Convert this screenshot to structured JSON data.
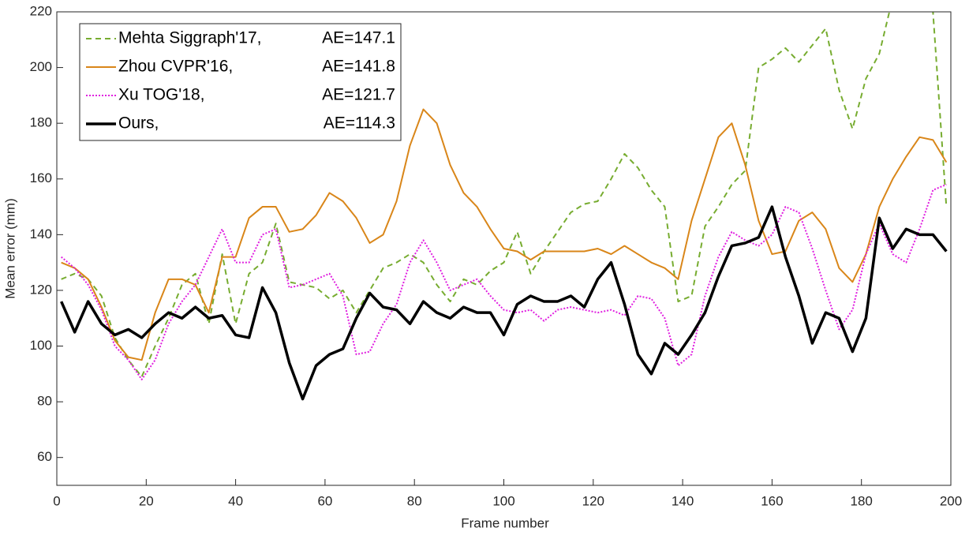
{
  "chart_data": {
    "type": "line",
    "x_label": "Frame number",
    "y_label": "Mean error (mm)",
    "xlim": [
      0,
      200
    ],
    "xticks": [
      0,
      20,
      40,
      60,
      80,
      100,
      120,
      140,
      160,
      180,
      200
    ],
    "ylim": [
      50,
      220
    ],
    "yticks": [
      60,
      80,
      100,
      120,
      140,
      160,
      180,
      200,
      220
    ],
    "grid": false,
    "legend": "upper-left",
    "x": [
      1,
      4,
      7,
      10,
      13,
      16,
      19,
      22,
      25,
      28,
      31,
      34,
      37,
      40,
      43,
      46,
      49,
      52,
      55,
      58,
      61,
      64,
      67,
      70,
      73,
      76,
      79,
      82,
      85,
      88,
      91,
      94,
      97,
      100,
      103,
      106,
      109,
      112,
      115,
      118,
      121,
      124,
      127,
      130,
      133,
      136,
      139,
      142,
      145,
      148,
      151,
      154,
      157,
      160,
      163,
      166,
      169,
      172,
      175,
      178,
      181,
      184,
      187,
      190,
      193,
      196,
      199
    ],
    "series": [
      {
        "name": "Mehta Siggraph'17,",
        "ae": "AE=147.1",
        "color": "#77ac30",
        "line_style": "dashed",
        "line_width": 2,
        "values": [
          124,
          126,
          124,
          118,
          103,
          95,
          89,
          100,
          110,
          122,
          126,
          108,
          133,
          108,
          126,
          130,
          144,
          123,
          122,
          121,
          117,
          120,
          112,
          120,
          128,
          130,
          133,
          130,
          122,
          116,
          124,
          122,
          127,
          130,
          141,
          126,
          134,
          141,
          148,
          151,
          152,
          160,
          169,
          164,
          156,
          150,
          116,
          118,
          143,
          150,
          158,
          163,
          200,
          203,
          207,
          202,
          208,
          214,
          192,
          178,
          196,
          205,
          225,
          240,
          240,
          220,
          150
        ]
      },
      {
        "name": "Zhou CVPR'16,",
        "ae": "AE=141.8",
        "color": "#d98619",
        "line_style": "solid",
        "line_width": 2,
        "values": [
          130,
          128,
          124,
          114,
          102,
          96,
          95,
          112,
          124,
          124,
          122,
          112,
          132,
          132,
          146,
          150,
          150,
          141,
          142,
          147,
          155,
          152,
          146,
          137,
          140,
          152,
          172,
          185,
          180,
          165,
          155,
          150,
          142,
          135,
          134,
          131,
          134,
          134,
          134,
          134,
          135,
          133,
          136,
          133,
          130,
          128,
          124,
          145,
          160,
          175,
          180,
          165,
          145,
          133,
          134,
          145,
          148,
          142,
          128,
          123,
          133,
          150,
          160,
          168,
          175,
          174,
          166
        ]
      },
      {
        "name": "Xu TOG'18,",
        "ae": "AE=121.7",
        "color": "#e020e0",
        "line_style": "dotted",
        "line_width": 2,
        "values": [
          132,
          128,
          122,
          113,
          100,
          95,
          88,
          95,
          108,
          116,
          122,
          132,
          142,
          130,
          130,
          140,
          142,
          121,
          122,
          124,
          126,
          118,
          97,
          98,
          108,
          115,
          130,
          138,
          130,
          120,
          122,
          124,
          118,
          113,
          112,
          113,
          109,
          113,
          114,
          113,
          112,
          113,
          111,
          118,
          117,
          110,
          93,
          97,
          118,
          132,
          141,
          138,
          136,
          140,
          150,
          148,
          135,
          120,
          106,
          113,
          133,
          144,
          133,
          130,
          142,
          156,
          158
        ]
      },
      {
        "name": "Ours,",
        "ae": "AE=114.3",
        "color": "#000000",
        "line_style": "solid",
        "line_width": 3.5,
        "values": [
          116,
          105,
          116,
          108,
          104,
          106,
          103,
          108,
          112,
          110,
          114,
          110,
          111,
          104,
          103,
          121,
          112,
          94,
          81,
          93,
          97,
          99,
          110,
          119,
          114,
          113,
          108,
          116,
          112,
          110,
          114,
          112,
          112,
          104,
          115,
          118,
          116,
          116,
          118,
          114,
          124,
          130,
          115,
          97,
          90,
          101,
          97,
          104,
          112,
          125,
          136,
          137,
          139,
          150,
          132,
          118,
          101,
          112,
          110,
          98,
          110,
          146,
          135,
          142,
          140,
          140,
          134
        ]
      }
    ]
  }
}
